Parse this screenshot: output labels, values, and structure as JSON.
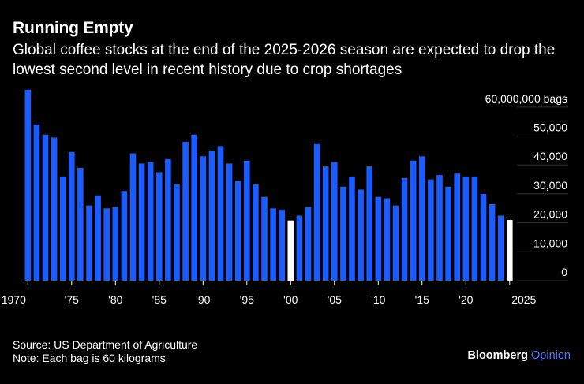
{
  "header": {
    "title": "Running Empty",
    "subtitle": "Global coffee stocks at the end of the 2025-2026 season are expected to drop the lowest second level in recent history due to crop shortages"
  },
  "footer": {
    "source": "Source: US Department of Agriculture",
    "note": "Note: Each bag is 60 kilograms",
    "brand_name": "Bloomberg",
    "brand_suffix": "Opinion"
  },
  "colors": {
    "bar": "#1a5cff",
    "highlight": "#ffffff",
    "background": "#000000"
  },
  "chart_data": {
    "type": "bar",
    "title": "Running Empty",
    "xlabel": "",
    "ylabel": "bags",
    "ylim": [
      0,
      65000000
    ],
    "highlight_years": [
      2000,
      2025
    ],
    "x": [
      1970,
      1971,
      1972,
      1973,
      1974,
      1975,
      1976,
      1977,
      1978,
      1979,
      1980,
      1981,
      1982,
      1983,
      1984,
      1985,
      1986,
      1987,
      1988,
      1989,
      1990,
      1991,
      1992,
      1993,
      1994,
      1995,
      1996,
      1997,
      1998,
      1999,
      2000,
      2001,
      2002,
      2003,
      2004,
      2005,
      2006,
      2007,
      2008,
      2009,
      2010,
      2011,
      2012,
      2013,
      2014,
      2015,
      2016,
      2017,
      2018,
      2019,
      2020,
      2021,
      2022,
      2023,
      2024,
      2025
    ],
    "values": [
      66000000,
      54000000,
      50500000,
      49500000,
      36000000,
      44500000,
      39000000,
      26000000,
      29500000,
      25000000,
      25500000,
      31000000,
      44000000,
      40500000,
      41000000,
      37500000,
      42000000,
      33500000,
      48000000,
      50500000,
      43000000,
      45000000,
      46500000,
      40500000,
      34500000,
      41500000,
      33500000,
      29000000,
      25000000,
      24500000,
      20800000,
      22500000,
      25500000,
      47500000,
      39500000,
      41000000,
      32500000,
      36000000,
      31500000,
      39500000,
      29000000,
      28500000,
      26000000,
      35500000,
      41500000,
      43000000,
      35000000,
      36500000,
      32500000,
      37000000,
      36000000,
      36000000,
      30000000,
      26500000,
      22500000,
      21000000
    ],
    "x_tick_labels": [
      {
        "year": 1970,
        "label": "1970"
      },
      {
        "year": 1975,
        "label": "'75"
      },
      {
        "year": 1980,
        "label": "'80"
      },
      {
        "year": 1985,
        "label": "'85"
      },
      {
        "year": 1990,
        "label": "'90"
      },
      {
        "year": 1995,
        "label": "'95"
      },
      {
        "year": 2000,
        "label": "'00"
      },
      {
        "year": 2005,
        "label": "'05"
      },
      {
        "year": 2010,
        "label": "'10"
      },
      {
        "year": 2015,
        "label": "'15"
      },
      {
        "year": 2020,
        "label": "'20"
      },
      {
        "year": 2025,
        "label": "2025"
      }
    ],
    "y_ticks": [
      {
        "value": 60000000,
        "label": "60,000,000 bags"
      },
      {
        "value": 50000000,
        "label": "50,000"
      },
      {
        "value": 40000000,
        "label": "40,000"
      },
      {
        "value": 30000000,
        "label": "30,000"
      },
      {
        "value": 20000000,
        "label": "20,000"
      },
      {
        "value": 10000000,
        "label": "10,000"
      },
      {
        "value": 0,
        "label": "0"
      }
    ]
  }
}
